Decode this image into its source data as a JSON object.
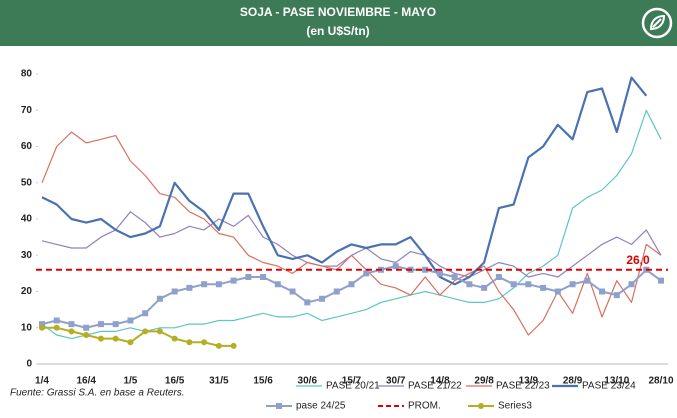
{
  "chart_data": {
    "type": "line",
    "title": "SOJA - PASE NOVIEMBRE - MAYO",
    "subtitle": "(en U$S/tn)",
    "source": "Fuente: Grassi S.A. en base a Reuters.",
    "categories": [
      "1/4",
      null,
      null,
      "16/4",
      null,
      null,
      "1/5",
      null,
      null,
      "16/5",
      null,
      null,
      "31/5",
      null,
      null,
      "15/6",
      null,
      null,
      "30/6",
      null,
      null,
      "15/7",
      null,
      null,
      "30/7",
      null,
      null,
      "14/8",
      null,
      null,
      "29/8",
      null,
      null,
      "13/9",
      null,
      null,
      "28/9",
      null,
      null,
      "13/10",
      null,
      null,
      "28/10"
    ],
    "ylim": [
      0,
      80
    ],
    "yticks": [
      0,
      10,
      20,
      30,
      40,
      50,
      60,
      70,
      80
    ],
    "series": [
      {
        "name": "PASE 20/21",
        "color": "#5cc6c4",
        "width": 1.2,
        "values": [
          11,
          8,
          7,
          8,
          9,
          9,
          10,
          9,
          10,
          10,
          11,
          11,
          12,
          12,
          13,
          14,
          13,
          13,
          14,
          12,
          13,
          14,
          15,
          17,
          18,
          19,
          20,
          19,
          18,
          17,
          17,
          18,
          21,
          25,
          27,
          30,
          43,
          46,
          48,
          52,
          58,
          70,
          62
        ]
      },
      {
        "name": "PASE 21/22",
        "color": "#9080c0",
        "width": 1.2,
        "values": [
          34,
          33,
          32,
          32,
          35,
          37,
          42,
          39,
          35,
          36,
          38,
          37,
          40,
          38,
          41,
          35,
          33,
          30,
          28,
          27,
          27,
          30,
          32,
          29,
          28,
          31,
          30,
          27,
          25,
          24,
          26,
          28,
          27,
          24,
          25,
          24,
          27,
          30,
          33,
          35,
          33,
          37,
          30
        ]
      },
      {
        "name": "PASE 22/23",
        "color": "#d9705e",
        "width": 1.2,
        "values": [
          50,
          60,
          64,
          61,
          62,
          63,
          56,
          52,
          47,
          46,
          42,
          40,
          36,
          35,
          30,
          28,
          27,
          25,
          28,
          27,
          26,
          30,
          26,
          22,
          21,
          19,
          24,
          19,
          23,
          25,
          27,
          20,
          15,
          8,
          12,
          20,
          14,
          25,
          13,
          23,
          17,
          33,
          30
        ]
      },
      {
        "name": "PASE 23/24",
        "color": "#4a72b0",
        "width": 2.2,
        "values": [
          46,
          44,
          40,
          39,
          40,
          37,
          35,
          36,
          38,
          50,
          45,
          42,
          37,
          47,
          47,
          38,
          30,
          29,
          30,
          28,
          31,
          33,
          32,
          33,
          33,
          35,
          30,
          24,
          22,
          24,
          28,
          43,
          44,
          57,
          60,
          66,
          62,
          75,
          76,
          64,
          79,
          74,
          null
        ]
      },
      {
        "name": "pase 24/25",
        "color": "#8ea0cc",
        "width": 2,
        "marker": "square",
        "values": [
          11,
          12,
          11,
          10,
          11,
          11,
          12,
          14,
          18,
          20,
          21,
          22,
          22,
          23,
          24,
          24,
          22,
          20,
          17,
          18,
          20,
          22,
          25,
          26,
          27,
          26,
          26,
          25,
          24,
          22,
          21,
          24,
          22,
          22,
          21,
          20,
          22,
          23,
          20,
          19,
          22,
          26,
          23
        ]
      },
      {
        "name": "PROM.",
        "color": "#e00000",
        "width": 2,
        "dashed": true,
        "value": 26,
        "value_label": "26,0"
      },
      {
        "name": "Series3",
        "color": "#b5ad22",
        "width": 2,
        "marker": "circle",
        "values": [
          10,
          10,
          9,
          8,
          7,
          7,
          6,
          9,
          9,
          7,
          6,
          6,
          5,
          5,
          null,
          null,
          null,
          null,
          null,
          null,
          null,
          null,
          null,
          null,
          null,
          null,
          null,
          null,
          null,
          null,
          null,
          null,
          null,
          null,
          null,
          null,
          null,
          null,
          null,
          null,
          null,
          null,
          null
        ]
      }
    ]
  }
}
